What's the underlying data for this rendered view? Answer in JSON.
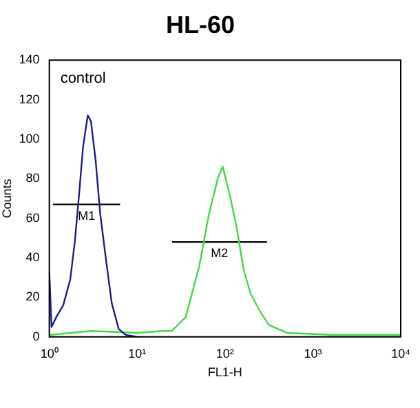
{
  "chart_data": {
    "type": "line",
    "title": "HL-60",
    "xlabel": "FL1-H",
    "ylabel": "Counts",
    "log": "x",
    "xlim": [
      1,
      10000
    ],
    "ylim": [
      0,
      140
    ],
    "xticks": [
      {
        "value": 1,
        "label": "10⁰"
      },
      {
        "value": 10,
        "label": "10¹"
      },
      {
        "value": 100,
        "label": "10²"
      },
      {
        "value": 1000,
        "label": "10³"
      },
      {
        "value": 10000,
        "label": "10⁴"
      }
    ],
    "yticks": [
      0,
      20,
      40,
      60,
      80,
      100,
      120,
      140
    ],
    "grid": false,
    "legend": false,
    "marker": "none",
    "line_style": "solid",
    "series": [
      {
        "color": "#1c1c8e",
        "x": [
          1,
          1.06,
          1.2,
          1.44,
          1.73,
          1.95,
          2.2,
          2.42,
          2.74,
          2.98,
          3.37,
          3.8,
          4.45,
          5.14,
          6.17,
          7.4,
          10
        ],
        "values": [
          33,
          5,
          10,
          16,
          29,
          48,
          74,
          96,
          112,
          109,
          89,
          62,
          38,
          17,
          4,
          1,
          0
        ]
      },
      {
        "color": "#3cdc3c",
        "x": [
          1,
          3,
          10,
          20,
          24.8,
          35.7,
          51,
          65.6,
          83.6,
          94.4,
          113,
          136,
          163,
          195,
          249,
          316,
          513,
          1738,
          10000
        ],
        "values": [
          1,
          3,
          2,
          3,
          3,
          10,
          36,
          62,
          81,
          86,
          72,
          55,
          34,
          22,
          13,
          6,
          2,
          1,
          1
        ]
      },
      {
        "type": "line",
        "name": "M1",
        "color": "#000000",
        "x": [
          1.1,
          6.4
        ],
        "values": [
          67,
          67
        ]
      },
      {
        "type": "line",
        "name": "M2",
        "color": "#000000",
        "x": [
          25,
          300
        ],
        "values": [
          48,
          48
        ]
      }
    ],
    "annotations": [
      "control"
    ]
  }
}
